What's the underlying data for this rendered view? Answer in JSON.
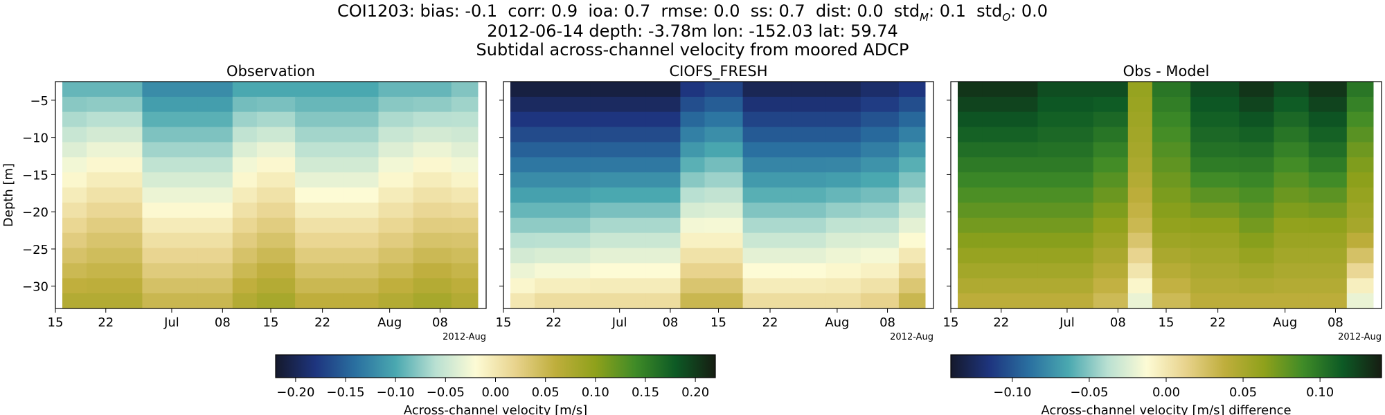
{
  "figure": {
    "title_line1": "COI1203: bias: -0.1  corr: 0.9  ioa: 0.7  rmse: 0.0  ss: 0.7  dist: 0.0  std_M: 0.1  std_O: 0.0",
    "title_stats": [
      {
        "label": "COI1203: bias:",
        "value": "-0.1"
      },
      {
        "label": "corr:",
        "value": "0.9"
      },
      {
        "label": "ioa:",
        "value": "0.7"
      },
      {
        "label": "rmse:",
        "value": "0.0"
      },
      {
        "label": "ss:",
        "value": "0.7"
      },
      {
        "label": "dist:",
        "value": "0.0"
      },
      {
        "label": "std",
        "sub": "M",
        "value": "0.1"
      },
      {
        "label": "std",
        "sub": "O",
        "value": "0.0"
      }
    ],
    "title_line2": "2012-06-14 depth: -3.78m lon: -152.03 lat: 59.74",
    "title_line3": "Subtidal across-channel velocity from moored ADCP"
  },
  "chart_data": [
    {
      "type": "heatmap",
      "title": "Observation",
      "ylabel": "Depth [m]",
      "xlabel": "",
      "x_ticks": [
        "15",
        "22",
        "Jul",
        "08",
        "15",
        "22",
        "Aug",
        "08"
      ],
      "x_offset_label": "2012-Aug",
      "xlim": [
        "2012-06-14",
        "2012-08-15"
      ],
      "y_ticks": [
        -5,
        -10,
        -15,
        -20,
        -25,
        -30
      ],
      "ylim": [
        -33,
        -2.5
      ],
      "depth_levels": [
        -3.78,
        -5.78,
        -7.78,
        -9.78,
        -11.78,
        -13.78,
        -15.78,
        -17.78,
        -19.78,
        -21.78,
        -23.78,
        -25.78,
        -27.78,
        -29.78,
        -31.78
      ],
      "dates": [
        "2012-06-15",
        "2012-06-22",
        "2012-07-01",
        "2012-07-08",
        "2012-07-11",
        "2012-07-15",
        "2012-07-22",
        "2012-07-29",
        "2012-08-01",
        "2012-08-08",
        "2012-08-12"
      ],
      "values": [
        [
          -0.09,
          -0.03,
          0.02,
          0.07
        ],
        [
          -0.09,
          -0.02,
          0.03,
          0.07
        ],
        [
          -0.12,
          -0.06,
          0.0,
          0.05
        ],
        [
          -0.12,
          -0.06,
          0.0,
          0.05
        ],
        [
          -0.1,
          -0.03,
          0.02,
          0.07
        ],
        [
          -0.1,
          -0.02,
          0.03,
          0.08
        ],
        [
          -0.1,
          -0.05,
          0.01,
          0.06
        ],
        [
          -0.1,
          -0.05,
          0.01,
          0.06
        ],
        [
          -0.09,
          -0.03,
          0.02,
          0.07
        ],
        [
          -0.09,
          -0.02,
          0.03,
          0.08
        ],
        [
          -0.08,
          -0.03,
          0.03,
          0.07
        ]
      ]
    },
    {
      "type": "heatmap",
      "title": "CIOFS_FRESH",
      "ylabel": "",
      "xlabel": "",
      "x_ticks": [
        "15",
        "22",
        "Jul",
        "08",
        "15",
        "22",
        "Aug",
        "08"
      ],
      "x_offset_label": "2012-Aug",
      "xlim": [
        "2012-06-14",
        "2012-08-15"
      ],
      "y_ticks": [
        -5,
        -10,
        -15,
        -20,
        -25,
        -30
      ],
      "ylim": [
        -33,
        -2.5
      ],
      "depth_levels": [
        -3.78,
        -5.78,
        -7.78,
        -9.78,
        -11.78,
        -13.78,
        -15.78,
        -17.78,
        -19.78,
        -21.78,
        -23.78,
        -25.78,
        -27.78,
        -29.78,
        -31.78
      ],
      "dates": [
        "2012-06-15",
        "2012-06-22",
        "2012-07-01",
        "2012-07-08",
        "2012-07-11",
        "2012-07-15",
        "2012-07-22",
        "2012-07-29",
        "2012-08-01",
        "2012-08-08",
        "2012-08-12"
      ],
      "values": [
        [
          -0.21,
          -0.14,
          -0.07,
          0.0
        ],
        [
          -0.21,
          -0.14,
          -0.07,
          0.01
        ],
        [
          -0.21,
          -0.14,
          -0.06,
          0.01
        ],
        [
          -0.21,
          -0.14,
          -0.06,
          0.01
        ],
        [
          -0.18,
          -0.1,
          -0.02,
          0.05
        ],
        [
          -0.17,
          -0.09,
          -0.02,
          0.05
        ],
        [
          -0.2,
          -0.13,
          -0.06,
          0.01
        ],
        [
          -0.2,
          -0.13,
          -0.06,
          0.01
        ],
        [
          -0.2,
          -0.13,
          -0.05,
          0.01
        ],
        [
          -0.19,
          -0.12,
          -0.05,
          0.02
        ],
        [
          -0.18,
          -0.1,
          -0.03,
          0.05
        ]
      ]
    },
    {
      "type": "heatmap",
      "title": "Obs - Model",
      "ylabel": "",
      "xlabel": "",
      "x_ticks": [
        "15",
        "22",
        "Jul",
        "08",
        "15",
        "22",
        "Aug",
        "08"
      ],
      "x_offset_label": "2012-Aug",
      "xlim": [
        "2012-06-14",
        "2012-08-15"
      ],
      "y_ticks": [
        -5,
        -10,
        -15,
        -20,
        -25,
        -30
      ],
      "ylim": [
        -33,
        -2.5
      ],
      "depth_levels": [
        -3.78,
        -5.78,
        -7.78,
        -9.78,
        -11.78,
        -13.78,
        -15.78,
        -17.78,
        -19.78,
        -21.78,
        -23.78,
        -25.78,
        -27.78,
        -29.78,
        -31.78
      ],
      "dates": [
        "2012-06-15",
        "2012-06-22",
        "2012-07-01",
        "2012-07-08",
        "2012-07-11",
        "2012-07-15",
        "2012-07-22",
        "2012-07-29",
        "2012-08-01",
        "2012-08-08",
        "2012-08-12"
      ],
      "values": [
        [
          0.13,
          0.1,
          0.07,
          0.04
        ],
        [
          0.13,
          0.1,
          0.07,
          0.04
        ],
        [
          0.12,
          0.1,
          0.07,
          0.04
        ],
        [
          0.12,
          0.09,
          0.06,
          0.03
        ],
        [
          0.06,
          0.05,
          0.03,
          -0.02
        ],
        [
          0.1,
          0.08,
          0.06,
          0.03
        ],
        [
          0.12,
          0.1,
          0.06,
          0.04
        ],
        [
          0.13,
          0.1,
          0.07,
          0.04
        ],
        [
          0.12,
          0.09,
          0.06,
          0.04
        ],
        [
          0.13,
          0.1,
          0.06,
          0.04
        ],
        [
          0.1,
          0.07,
          0.05,
          -0.02
        ]
      ]
    }
  ],
  "colorbars": [
    {
      "label": "Across-channel velocity [m/s]",
      "range": [
        -0.22,
        0.22
      ],
      "ticks": [
        "−0.20",
        "−0.15",
        "−0.10",
        "−0.05",
        "0.00",
        "0.05",
        "0.10",
        "0.15",
        "0.20"
      ],
      "tick_values": [
        -0.2,
        -0.15,
        -0.1,
        -0.05,
        0.0,
        0.05,
        0.1,
        0.15,
        0.2
      ]
    },
    {
      "label": "Across-channel velocity [m/s] difference",
      "range": [
        -0.14,
        0.14
      ],
      "ticks": [
        "−0.10",
        "−0.05",
        "0.00",
        "0.05",
        "0.10"
      ],
      "tick_values": [
        -0.1,
        -0.05,
        0.0,
        0.05,
        0.1
      ]
    }
  ],
  "colormap": [
    "#15192c",
    "#1e357f",
    "#2a70a0",
    "#4aa8b0",
    "#b9e0d2",
    "#fdfbd5",
    "#e8d38d",
    "#bfae3c",
    "#8fa11b",
    "#3f8b27",
    "#0d5a25",
    "#161d12"
  ]
}
